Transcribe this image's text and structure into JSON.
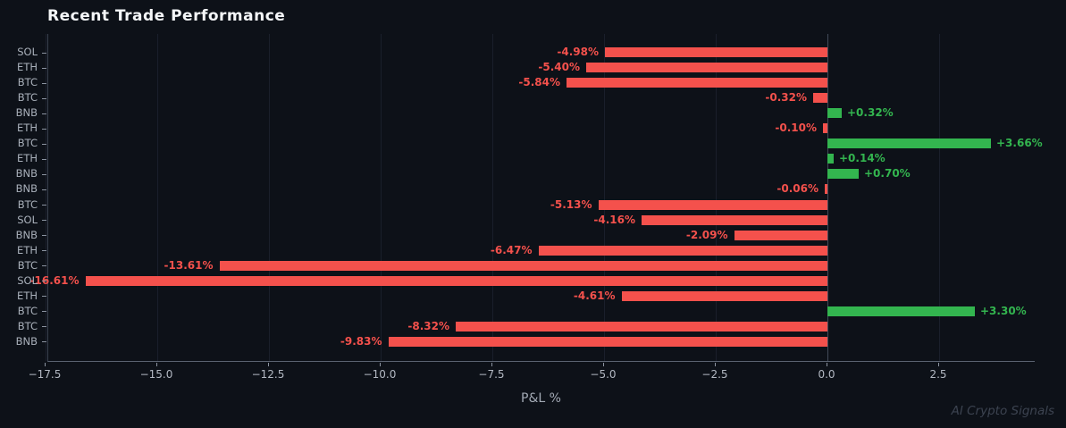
{
  "watermark": "AI Crypto Signals",
  "colors": {
    "background": "#0d1118",
    "positive": "#33b54f",
    "negative": "#f4514c",
    "grid": "#1a1f2b",
    "zero_line": "#424a59",
    "tick": "#8b93a0",
    "tick_label": "#b2b8c2",
    "title": "#f4f6f8"
  },
  "chart_data": {
    "type": "bar",
    "orientation": "horizontal",
    "title": "Recent Trade Performance",
    "xlabel": "P&L %",
    "ylabel": "",
    "categories": [
      "SOL",
      "ETH",
      "BTC",
      "BTC",
      "BNB",
      "ETH",
      "BTC",
      "ETH",
      "BNB",
      "BNB",
      "BTC",
      "SOL",
      "BNB",
      "ETH",
      "BTC",
      "SOL",
      "ETH",
      "BTC",
      "BTC",
      "BNB"
    ],
    "values": [
      -4.98,
      -5.4,
      -5.84,
      -0.32,
      0.32,
      -0.1,
      3.66,
      0.14,
      0.7,
      -0.06,
      -5.13,
      -4.16,
      -2.09,
      -6.47,
      -13.61,
      -16.61,
      -4.61,
      3.3,
      -8.32,
      -9.83
    ],
    "labels": [
      "-4.98%",
      "-5.40%",
      "-5.84%",
      "-0.32%",
      "+0.32%",
      "-0.10%",
      "+3.66%",
      "+0.14%",
      "+0.70%",
      "-0.06%",
      "-5.13%",
      "-4.16%",
      "-2.09%",
      "-6.47%",
      "-13.61%",
      "-16.61%",
      "-4.61%",
      "+3.30%",
      "-8.32%",
      "-9.83%"
    ],
    "x_ticks": [
      -17.5,
      -15.0,
      -12.5,
      -10.0,
      -7.5,
      -5.0,
      -2.5,
      0.0,
      2.5
    ],
    "x_tick_labels": [
      "−17.5",
      "−15.0",
      "−12.5",
      "−10.0",
      "−7.5",
      "−5.0",
      "−2.5",
      "0.0",
      "2.5"
    ],
    "xlim": [
      -17.44,
      4.66
    ],
    "grid": "vertical",
    "legend": "none",
    "color_rule": "green if positive, red if negative"
  }
}
